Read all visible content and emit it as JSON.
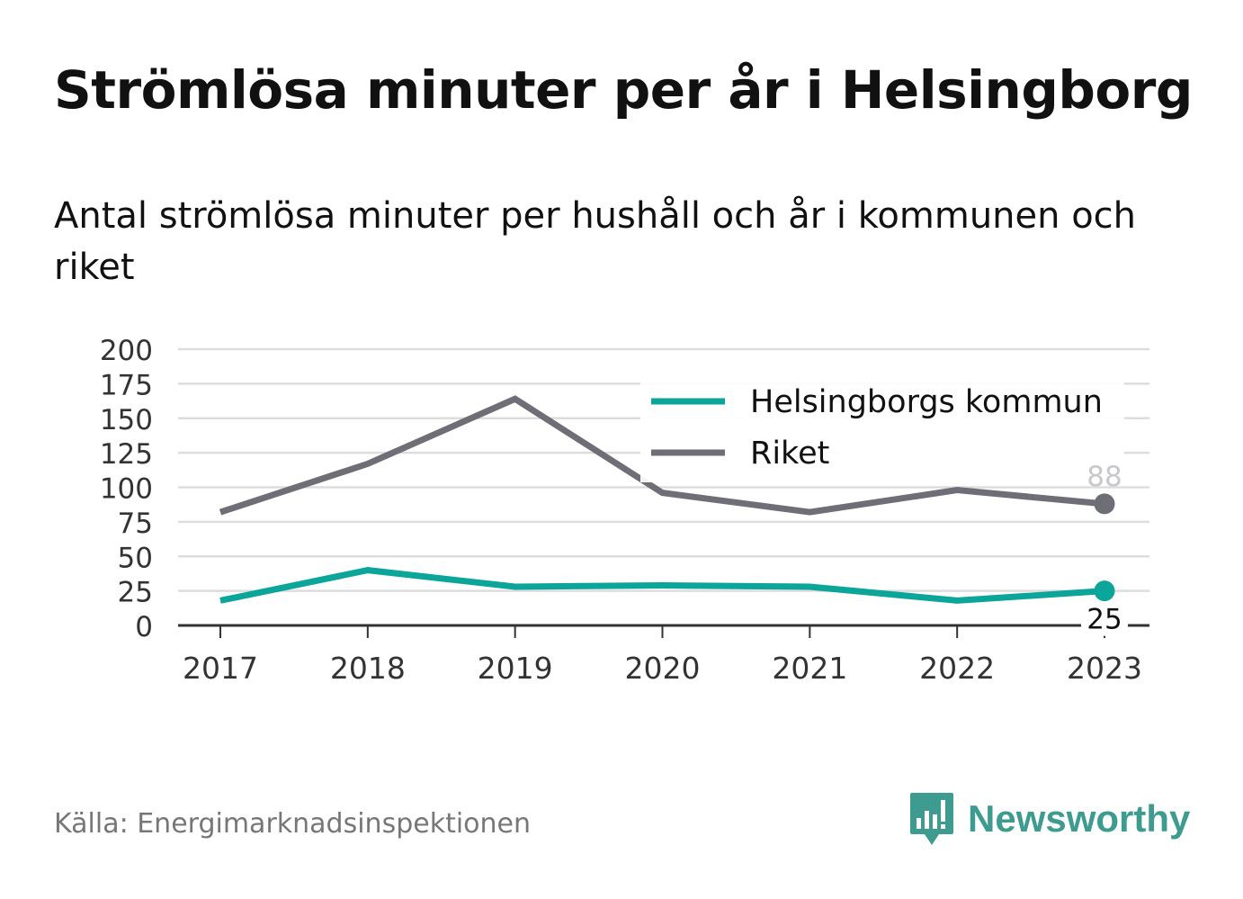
{
  "header": {
    "title": "Strömlösa minuter per år i Helsingborg",
    "subtitle": "Antal strömlösa minuter per hushåll och år i kommunen och riket"
  },
  "footer": {
    "source": "Källa: Energimarknadsinspektionen",
    "brand": "Newsworthy",
    "brand_icon": "bar-chart-speech-bubble-icon"
  },
  "colors": {
    "kommun": "#0ba599",
    "riket": "#6e6e76",
    "grid": "#dddddd",
    "axis": "#333333",
    "brand": "#3d9b8f"
  },
  "chart_data": {
    "type": "line",
    "title": "Strömlösa minuter per år i Helsingborg",
    "subtitle": "Antal strömlösa minuter per hushåll och år i kommunen och riket",
    "x": [
      "2017",
      "2018",
      "2019",
      "2020",
      "2021",
      "2022",
      "2023"
    ],
    "series": [
      {
        "name": "Helsingborgs kommun",
        "values": [
          18,
          40,
          28,
          29,
          28,
          18,
          25
        ],
        "end_label": "25"
      },
      {
        "name": "Riket",
        "values": [
          82,
          117,
          164,
          96,
          82,
          98,
          88
        ],
        "end_label": "88"
      }
    ],
    "yticks": [
      0,
      25,
      50,
      75,
      100,
      125,
      150,
      175,
      200
    ],
    "ylim": [
      0,
      200
    ],
    "grid": true,
    "legend": "top-right",
    "xlabel": "",
    "ylabel": ""
  }
}
